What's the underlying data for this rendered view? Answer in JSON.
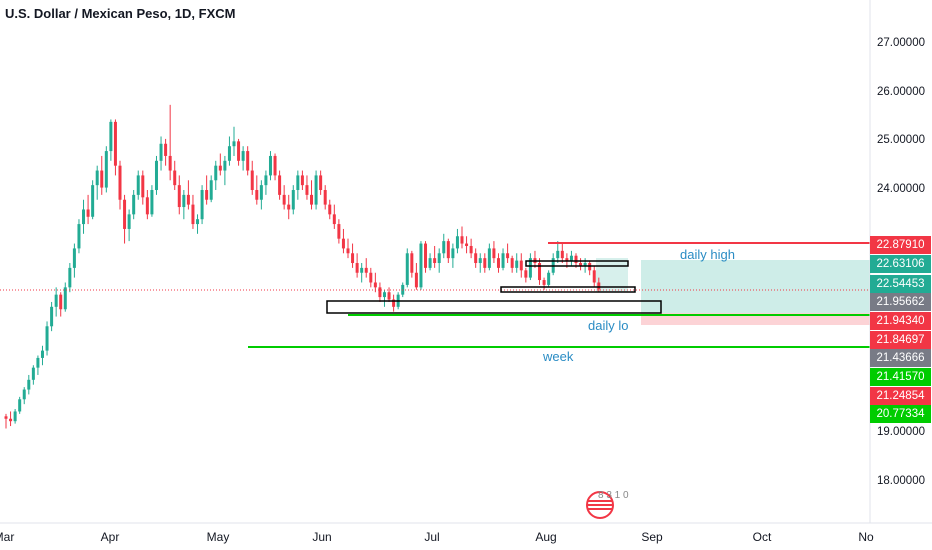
{
  "header": {
    "title": "U.S. Dollar / Mexican Peso, 1D, FXCM"
  },
  "annotations": {
    "daily_high": "daily high",
    "daily_low": "daily lo",
    "week": "week"
  },
  "logo_text": "8 3 1 0",
  "chart_data": {
    "type": "candlestick",
    "title": "U.S. Dollar / Mexican Peso, 1D, FXCM",
    "y_axis": {
      "ticks": [
        "27.00000",
        "26.00000",
        "25.00000",
        "24.00000",
        "19.00000",
        "18.00000"
      ],
      "ylim": [
        17.2,
        27.8
      ],
      "position": "right"
    },
    "x_axis": {
      "ticks": [
        "Mar",
        "Apr",
        "May",
        "Jun",
        "Jul",
        "Aug",
        "Sep",
        "Oct",
        "No"
      ]
    },
    "price_badges": [
      {
        "text": "22.87910",
        "value": 22.8791,
        "color": "#f23645"
      },
      {
        "text": "22.63106",
        "value": 22.63106,
        "color": "#22ab94"
      },
      {
        "text": "22.54453",
        "value": 22.54453,
        "color": "#22ab94"
      },
      {
        "text": "21.95662",
        "value": 21.95662,
        "color": "#787b86"
      },
      {
        "text": "21.94340",
        "value": 21.9434,
        "color": "#f23645"
      },
      {
        "text": "21.84697",
        "value": 21.84697,
        "color": "#f23645"
      },
      {
        "text": "21.43666",
        "value": 21.43666,
        "color": "#787b86"
      },
      {
        "text": "21.41570",
        "value": 21.4157,
        "color": "#00cc00"
      },
      {
        "text": "21.24854",
        "value": 21.24854,
        "color": "#f23645"
      },
      {
        "text": "20.77334",
        "value": 20.77334,
        "color": "#00cc00"
      }
    ],
    "candles": [
      [
        19.35,
        19.4,
        19.1,
        19.3
      ],
      [
        19.3,
        19.45,
        19.15,
        19.25
      ],
      [
        19.25,
        19.5,
        19.2,
        19.45
      ],
      [
        19.45,
        19.75,
        19.4,
        19.7
      ],
      [
        19.7,
        19.95,
        19.6,
        19.9
      ],
      [
        19.9,
        20.2,
        19.8,
        20.1
      ],
      [
        20.1,
        20.4,
        20.0,
        20.35
      ],
      [
        20.35,
        20.6,
        20.2,
        20.55
      ],
      [
        20.55,
        20.8,
        20.4,
        20.7
      ],
      [
        20.7,
        21.3,
        20.6,
        21.2
      ],
      [
        21.2,
        21.7,
        21.1,
        21.6
      ],
      [
        21.6,
        22.0,
        21.4,
        21.85
      ],
      [
        21.85,
        21.9,
        21.4,
        21.55
      ],
      [
        21.55,
        22.1,
        21.5,
        22.0
      ],
      [
        22.0,
        22.5,
        21.9,
        22.4
      ],
      [
        22.4,
        22.9,
        22.2,
        22.8
      ],
      [
        22.8,
        23.4,
        22.7,
        23.3
      ],
      [
        23.3,
        23.8,
        23.1,
        23.6
      ],
      [
        23.6,
        23.9,
        23.3,
        23.45
      ],
      [
        23.45,
        24.2,
        23.4,
        24.1
      ],
      [
        24.1,
        24.5,
        23.8,
        24.4
      ],
      [
        24.4,
        24.7,
        23.9,
        24.05
      ],
      [
        24.05,
        24.9,
        23.95,
        24.8
      ],
      [
        24.8,
        25.45,
        24.6,
        25.4
      ],
      [
        25.4,
        25.45,
        24.3,
        24.5
      ],
      [
        24.5,
        24.6,
        23.6,
        23.8
      ],
      [
        23.8,
        23.9,
        22.9,
        23.2
      ],
      [
        23.2,
        23.6,
        22.95,
        23.5
      ],
      [
        23.5,
        24.0,
        23.4,
        23.9
      ],
      [
        23.9,
        24.4,
        23.8,
        24.3
      ],
      [
        24.3,
        24.4,
        23.7,
        23.85
      ],
      [
        23.85,
        24.0,
        23.4,
        23.5
      ],
      [
        23.5,
        24.1,
        23.45,
        24.0
      ],
      [
        24.0,
        24.7,
        23.9,
        24.6
      ],
      [
        24.6,
        25.1,
        24.4,
        24.95
      ],
      [
        24.95,
        25.05,
        24.5,
        24.7
      ],
      [
        24.7,
        25.75,
        24.2,
        24.4
      ],
      [
        24.4,
        24.6,
        24.0,
        24.1
      ],
      [
        24.1,
        24.3,
        23.5,
        23.65
      ],
      [
        23.65,
        24.0,
        23.4,
        23.9
      ],
      [
        23.9,
        24.2,
        23.6,
        23.7
      ],
      [
        23.7,
        23.9,
        23.2,
        23.3
      ],
      [
        23.3,
        23.5,
        23.1,
        23.4
      ],
      [
        23.4,
        24.1,
        23.3,
        24.0
      ],
      [
        24.0,
        24.3,
        23.7,
        23.8
      ],
      [
        23.8,
        24.3,
        23.75,
        24.2
      ],
      [
        24.2,
        24.6,
        24.0,
        24.5
      ],
      [
        24.5,
        24.75,
        24.3,
        24.4
      ],
      [
        24.4,
        24.7,
        24.1,
        24.6
      ],
      [
        24.6,
        25.1,
        24.5,
        24.9
      ],
      [
        24.9,
        25.3,
        24.7,
        25.0
      ],
      [
        25.0,
        25.05,
        24.5,
        24.6
      ],
      [
        24.6,
        24.9,
        24.4,
        24.8
      ],
      [
        24.8,
        24.9,
        24.3,
        24.4
      ],
      [
        24.4,
        24.6,
        23.9,
        24.0
      ],
      [
        24.0,
        24.3,
        23.7,
        23.8
      ],
      [
        23.8,
        24.2,
        23.6,
        24.1
      ],
      [
        24.1,
        24.4,
        23.9,
        24.3
      ],
      [
        24.3,
        24.8,
        24.2,
        24.7
      ],
      [
        24.7,
        24.75,
        24.2,
        24.3
      ],
      [
        24.3,
        24.4,
        23.8,
        23.9
      ],
      [
        23.9,
        24.1,
        23.6,
        23.7
      ],
      [
        23.7,
        23.9,
        23.4,
        23.6
      ],
      [
        23.6,
        24.1,
        23.5,
        24.0
      ],
      [
        24.0,
        24.4,
        23.8,
        24.3
      ],
      [
        24.3,
        24.4,
        24.0,
        24.1
      ],
      [
        24.1,
        24.3,
        23.8,
        23.9
      ],
      [
        23.9,
        24.2,
        23.6,
        23.7
      ],
      [
        23.7,
        24.4,
        23.6,
        24.3
      ],
      [
        24.3,
        24.4,
        23.9,
        24.0
      ],
      [
        24.0,
        24.1,
        23.6,
        23.7
      ],
      [
        23.7,
        23.8,
        23.4,
        23.5
      ],
      [
        23.5,
        23.7,
        23.2,
        23.3
      ],
      [
        23.3,
        23.4,
        22.9,
        23.0
      ],
      [
        23.0,
        23.2,
        22.7,
        22.8
      ],
      [
        22.8,
        23.0,
        22.6,
        22.7
      ],
      [
        22.7,
        22.9,
        22.4,
        22.5
      ],
      [
        22.5,
        22.7,
        22.2,
        22.3
      ],
      [
        22.3,
        22.5,
        22.1,
        22.4
      ],
      [
        22.4,
        22.6,
        22.2,
        22.3
      ],
      [
        22.3,
        22.4,
        22.0,
        22.1
      ],
      [
        22.1,
        22.3,
        21.9,
        22.0
      ],
      [
        22.0,
        22.1,
        21.7,
        21.8
      ],
      [
        21.8,
        21.95,
        21.6,
        21.9
      ],
      [
        21.9,
        22.0,
        21.7,
        21.75
      ],
      [
        21.75,
        21.85,
        21.5,
        21.6
      ],
      [
        21.6,
        21.9,
        21.55,
        21.85
      ],
      [
        21.85,
        22.1,
        21.8,
        22.05
      ],
      [
        22.05,
        22.8,
        22.0,
        22.7
      ],
      [
        22.7,
        22.75,
        22.2,
        22.3
      ],
      [
        22.3,
        22.5,
        21.95,
        22.0
      ],
      [
        22.0,
        22.95,
        21.95,
        22.9
      ],
      [
        22.9,
        22.95,
        22.3,
        22.4
      ],
      [
        22.4,
        22.7,
        22.35,
        22.6
      ],
      [
        22.6,
        22.85,
        22.4,
        22.5
      ],
      [
        22.5,
        22.8,
        22.3,
        22.7
      ],
      [
        22.7,
        23.1,
        22.6,
        22.95
      ],
      [
        22.95,
        23.0,
        22.5,
        22.6
      ],
      [
        22.6,
        22.9,
        22.4,
        22.8
      ],
      [
        22.8,
        23.2,
        22.7,
        23.05
      ],
      [
        23.05,
        23.25,
        22.8,
        22.9
      ],
      [
        22.9,
        23.05,
        22.7,
        22.85
      ],
      [
        22.85,
        23.0,
        22.6,
        22.7
      ],
      [
        22.7,
        22.8,
        22.4,
        22.5
      ],
      [
        22.5,
        22.7,
        22.3,
        22.6
      ],
      [
        22.6,
        22.7,
        22.3,
        22.4
      ],
      [
        22.4,
        22.9,
        22.35,
        22.8
      ],
      [
        22.8,
        22.95,
        22.5,
        22.6
      ],
      [
        22.6,
        22.7,
        22.3,
        22.4
      ],
      [
        22.4,
        22.8,
        22.35,
        22.7
      ],
      [
        22.7,
        22.9,
        22.5,
        22.6
      ],
      [
        22.6,
        22.65,
        22.3,
        22.4
      ],
      [
        22.4,
        22.7,
        22.3,
        22.55
      ],
      [
        22.55,
        22.7,
        22.2,
        22.35
      ],
      [
        22.35,
        22.4,
        22.1,
        22.2
      ],
      [
        22.2,
        22.7,
        22.15,
        22.6
      ],
      [
        22.6,
        22.75,
        22.4,
        22.5
      ],
      [
        22.5,
        22.6,
        22.05,
        22.15
      ],
      [
        22.15,
        22.2,
        21.95,
        22.05
      ],
      [
        22.05,
        22.35,
        22.0,
        22.3
      ],
      [
        22.3,
        22.7,
        22.25,
        22.6
      ],
      [
        22.6,
        22.95,
        22.5,
        22.75
      ],
      [
        22.75,
        22.9,
        22.5,
        22.6
      ],
      [
        22.6,
        22.7,
        22.4,
        22.55
      ],
      [
        22.55,
        22.75,
        22.45,
        22.65
      ],
      [
        22.65,
        22.7,
        22.4,
        22.5
      ],
      [
        22.5,
        22.6,
        22.35,
        22.45
      ],
      [
        22.45,
        22.6,
        22.3,
        22.5
      ],
      [
        22.5,
        22.55,
        22.25,
        22.35
      ],
      [
        22.35,
        22.45,
        22.0,
        22.1
      ],
      [
        22.1,
        22.2,
        21.9,
        21.96
      ]
    ]
  }
}
